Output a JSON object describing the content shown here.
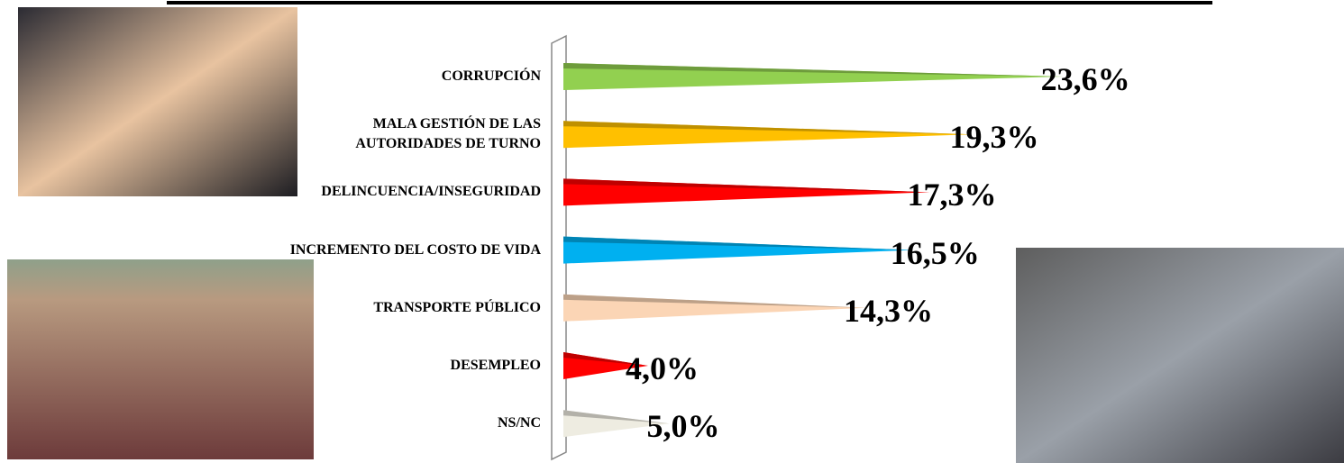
{
  "chart_data": {
    "type": "bar",
    "orientation": "horizontal",
    "categories": [
      "CORRUPCIÓN",
      "MALA GESTIÓN DE LAS AUTORIDADES DE TURNO",
      "DELINCUENCIA/INSEGURIDAD",
      "INCREMENTO DEL COSTO DE VIDA",
      "TRANSPORTE PÚBLICO",
      "DESEMPLEO",
      "NS/NC"
    ],
    "values": [
      23.6,
      19.3,
      17.3,
      16.5,
      14.3,
      4.0,
      5.0
    ],
    "value_labels": [
      "23,6%",
      "19,3%",
      "17,3%",
      "16,5%",
      "14,3%",
      "4,0%",
      "5,0%"
    ],
    "colors": [
      "#92d050",
      "#ffc000",
      "#ff0000",
      "#00b0f0",
      "#fbd5b5",
      "#ff0000",
      "#eeece1"
    ]
  }
}
